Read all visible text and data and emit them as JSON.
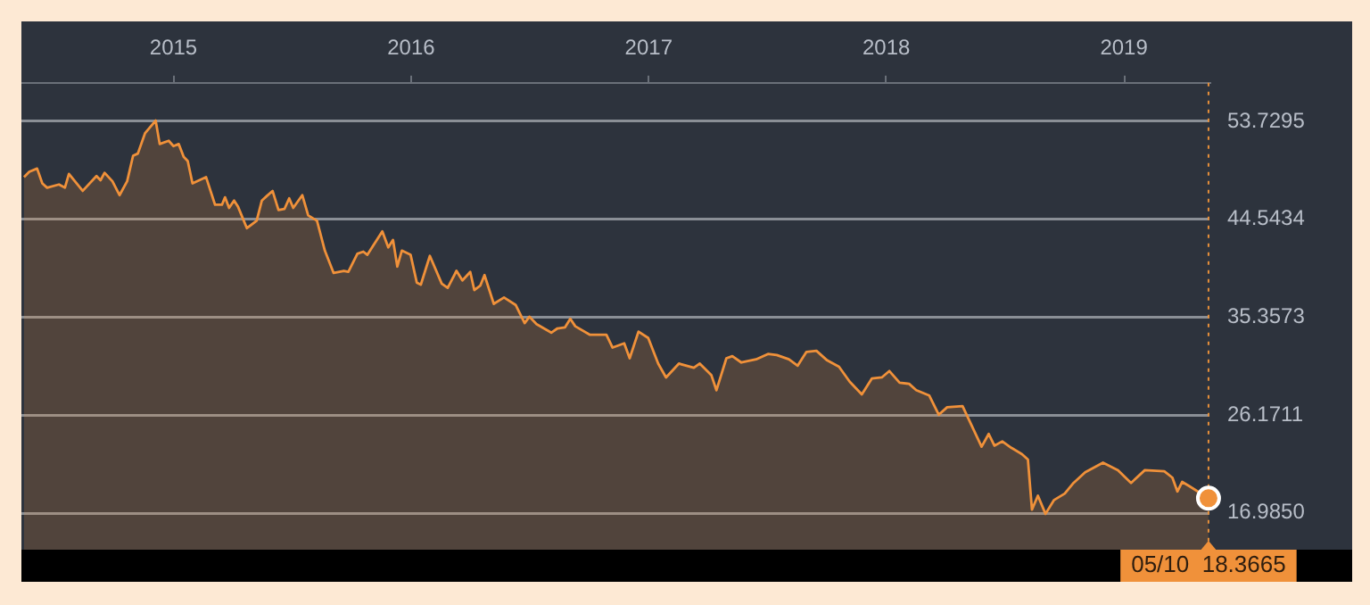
{
  "chart_data": {
    "type": "area",
    "x": [
      2014.371,
      2014.393,
      2014.426,
      2014.448,
      2014.468,
      2014.518,
      2014.543,
      2014.56,
      2014.618,
      2014.676,
      2014.693,
      2014.71,
      2014.743,
      2014.773,
      2014.805,
      2014.83,
      2014.85,
      2014.88,
      2014.925,
      2014.942,
      2014.98,
      2015.0,
      2015.022,
      2015.043,
      2015.06,
      2015.08,
      2015.137,
      2015.175,
      2015.204,
      2015.217,
      2015.234,
      2015.255,
      2015.272,
      2015.309,
      2015.35,
      2015.372,
      2015.392,
      2015.417,
      2015.442,
      2015.467,
      2015.487,
      2015.504,
      2015.542,
      2015.567,
      2015.604,
      2015.637,
      2015.674,
      2015.717,
      2015.736,
      2015.774,
      2015.799,
      2015.816,
      2015.879,
      2015.904,
      2015.924,
      2015.942,
      2015.961,
      2015.998,
      2016.024,
      2016.041,
      2016.079,
      2016.129,
      2016.154,
      2016.191,
      2016.216,
      2016.249,
      2016.266,
      2016.291,
      2016.309,
      2016.348,
      2016.391,
      2016.44,
      2016.478,
      2016.498,
      2016.528,
      2016.59,
      2016.616,
      2016.648,
      2016.67,
      2016.691,
      2016.753,
      2016.822,
      2016.848,
      2016.897,
      2016.92,
      2016.957,
      2016.998,
      2017.04,
      2017.073,
      2017.127,
      2017.19,
      2017.215,
      2017.264,
      2017.285,
      2017.327,
      2017.352,
      2017.39,
      2017.452,
      2017.502,
      2017.539,
      2017.59,
      2017.627,
      2017.664,
      2017.706,
      2017.751,
      2017.801,
      2017.846,
      2017.897,
      2017.939,
      2017.981,
      2018.013,
      2018.056,
      2018.096,
      2018.126,
      2018.181,
      2018.221,
      2018.256,
      2018.321,
      2018.401,
      2018.431,
      2018.455,
      2018.488,
      2018.526,
      2018.571,
      2018.596,
      2018.613,
      2018.638,
      2018.67,
      2018.706,
      2018.751,
      2018.788,
      2018.837,
      2018.912,
      2018.975,
      2019.03,
      2019.088,
      2019.17,
      2019.204,
      2019.225,
      2019.245,
      2019.275,
      2019.356
    ],
    "series": [
      {
        "color": "#f0913a",
        "values": [
          48.5,
          49.0,
          49.3,
          47.9,
          47.5,
          47.8,
          47.5,
          48.8,
          47.2,
          48.6,
          48.2,
          48.9,
          48.1,
          46.8,
          48.1,
          50.5,
          50.7,
          52.6,
          53.8,
          51.6,
          51.9,
          51.4,
          51.6,
          50.4,
          50.0,
          47.9,
          48.5,
          45.9,
          45.9,
          46.6,
          45.6,
          46.3,
          45.7,
          43.7,
          44.4,
          46.3,
          46.7,
          47.2,
          45.4,
          45.5,
          46.5,
          45.6,
          46.8,
          44.9,
          44.4,
          41.6,
          39.5,
          39.7,
          39.6,
          41.3,
          41.5,
          41.2,
          43.4,
          41.9,
          42.6,
          40.1,
          41.6,
          41.2,
          38.6,
          38.4,
          41.1,
          38.5,
          38.1,
          39.7,
          38.8,
          39.6,
          37.9,
          38.3,
          39.3,
          36.6,
          37.2,
          36.5,
          34.8,
          35.4,
          34.7,
          33.9,
          34.3,
          34.4,
          35.2,
          34.5,
          33.7,
          33.7,
          32.5,
          32.9,
          31.5,
          34.0,
          33.4,
          31.0,
          29.7,
          31.0,
          30.6,
          31.0,
          29.9,
          28.5,
          31.5,
          31.7,
          31.1,
          31.4,
          31.9,
          31.8,
          31.4,
          30.8,
          32.1,
          32.2,
          31.3,
          30.7,
          29.3,
          28.1,
          29.6,
          29.7,
          30.3,
          29.2,
          29.1,
          28.5,
          28.0,
          26.2,
          26.9,
          27.0,
          23.2,
          24.4,
          23.3,
          23.7,
          23.1,
          22.5,
          22.0,
          17.3,
          18.6,
          16.9,
          18.2,
          18.8,
          19.8,
          20.8,
          21.7,
          21.0,
          19.8,
          21.0,
          20.9,
          20.3,
          19.0,
          19.9,
          19.5,
          18.3665
        ]
      }
    ],
    "xlim": [
      2014.36,
      2019.36
    ],
    "xticks": [
      2015,
      2016,
      2017,
      2018,
      2019
    ],
    "ylim": [
      13.54,
      57.34
    ],
    "yticks": [
      {
        "value": 16.985,
        "label": "16.9850"
      },
      26.1711,
      35.3573,
      44.5434,
      53.7295
    ],
    "grid": "y",
    "legend": false,
    "marker": "none",
    "line_style": "solid",
    "ref_lines": [
      {
        "axis": "x",
        "value": 2019.356,
        "color": "#e8903a",
        "line_style": "dotted"
      }
    ],
    "annotations": [
      {
        "text": "05/10  18.3665",
        "x": 2019.356,
        "y": 18.3665
      }
    ]
  }
}
